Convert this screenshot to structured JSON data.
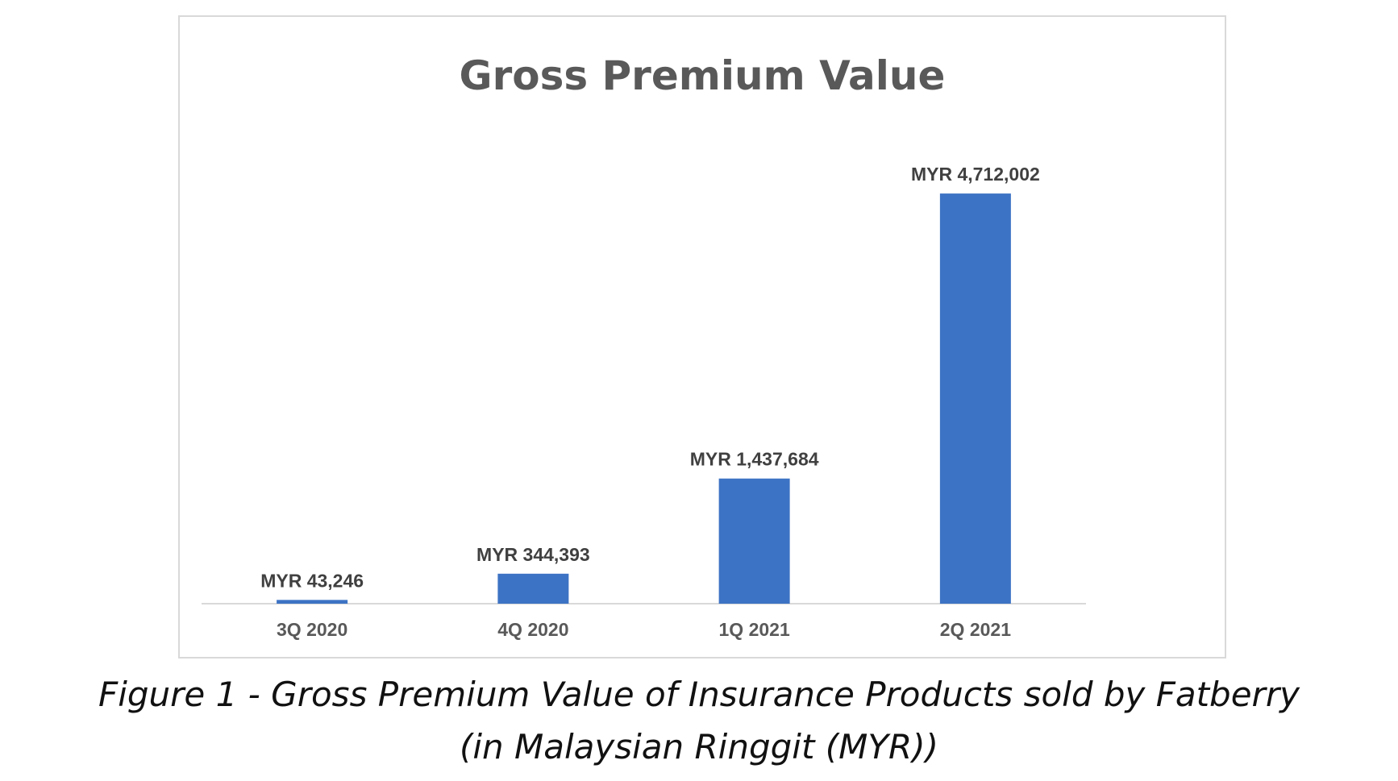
{
  "chart_data": {
    "type": "bar",
    "title": "Gross Premium Value",
    "categories": [
      "3Q 2020",
      "4Q 2020",
      "1Q 2021",
      "2Q 2021"
    ],
    "values": [
      43246,
      344393,
      1437684,
      4712002
    ],
    "data_labels": [
      "MYR 43,246",
      "MYR 344,393",
      "MYR 1,437,684",
      "MYR 4,712,002"
    ],
    "xlabel": "",
    "ylabel": "",
    "ylim": [
      0,
      5000000
    ],
    "grid": false,
    "legend": "none",
    "bar_color": "#3d73c4",
    "axis_color": "#d9d9d9"
  },
  "caption": {
    "line1": "Figure 1 - Gross Premium Value of Insurance Products sold by Fatberry",
    "line2": "(in Malaysian Ringgit (MYR))"
  }
}
